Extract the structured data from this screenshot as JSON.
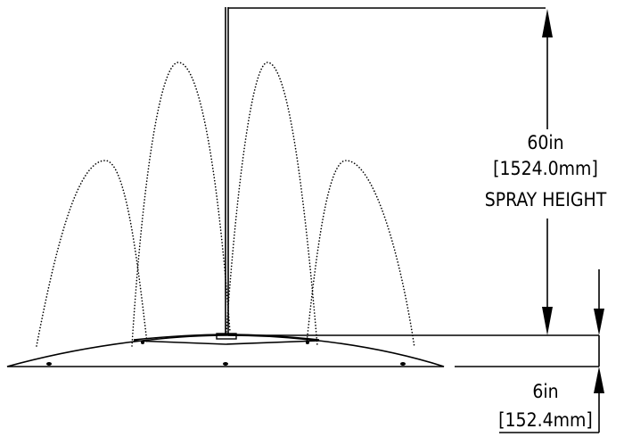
{
  "spray_height": {
    "value": "60in",
    "metric": "[1524.0mm]",
    "caption": "SPRAY HEIGHT"
  },
  "base_height": {
    "value": "6in",
    "metric": "[152.4mm]"
  }
}
